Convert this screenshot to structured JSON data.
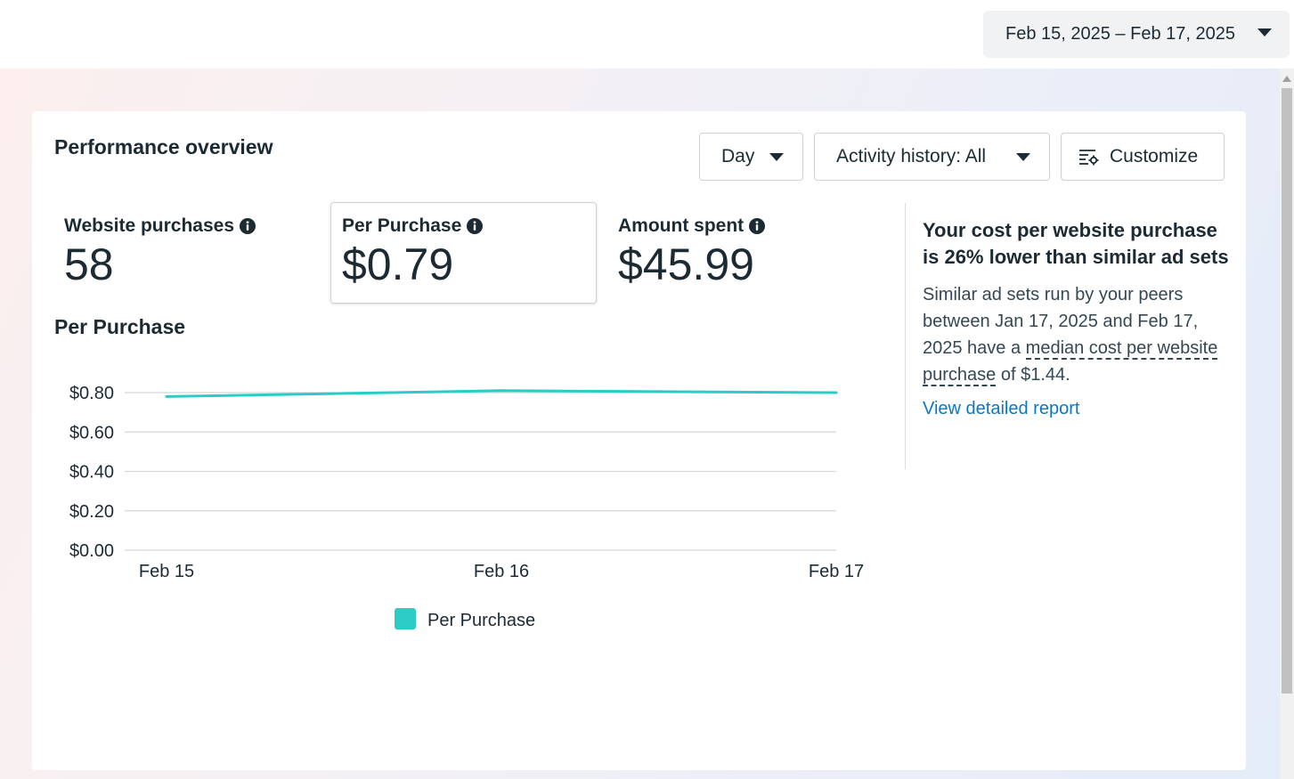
{
  "date_range": {
    "label": "Feb 15, 2025 – Feb 17, 2025"
  },
  "overview": {
    "title": "Performance overview",
    "controls": {
      "granularity": "Day",
      "activity": "Activity history: All",
      "customize": "Customize"
    },
    "metrics": [
      {
        "label": "Website purchases",
        "value": "58"
      },
      {
        "label": "Per Purchase",
        "value": "$0.79"
      },
      {
        "label": "Amount spent",
        "value": "$45.99"
      }
    ],
    "chart_title": "Per Purchase"
  },
  "chart_data": {
    "type": "line",
    "title": "",
    "x": [
      "Feb 15",
      "Feb 16",
      "Feb 17"
    ],
    "series": [
      {
        "name": "Per Purchase",
        "values": [
          0.78,
          0.81,
          0.8
        ],
        "color": "#2ccbc6"
      }
    ],
    "y_ticks": [
      "$0.00",
      "$0.20",
      "$0.40",
      "$0.60",
      "$0.80"
    ],
    "ylim": [
      0,
      0.8
    ],
    "grid": true,
    "legend": "bottom"
  },
  "insight": {
    "headline": "Your cost per website purchase is 26% lower than similar ad sets",
    "body_prefix": "Similar ad sets run by your peers between Jan 17, 2025 and Feb 17, 2025 have a ",
    "body_term": "median cost per website purchase",
    "body_suffix": " of $1.44.",
    "link": "View detailed report"
  }
}
